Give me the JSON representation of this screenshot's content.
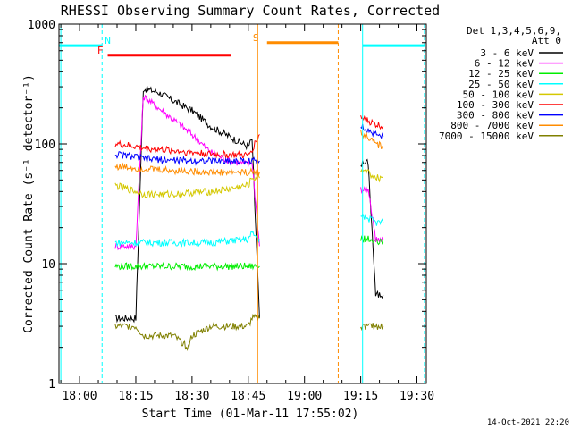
{
  "chart_data": {
    "type": "line",
    "title": "RHESSI Observing Summary Count Rates, Corrected",
    "xlabel": "Start Time (01-Mar-11 17:55:02)",
    "ylabel": "Corrected Count Rate (s⁻¹ detector⁻¹)",
    "yscale": "log",
    "xlim_minutes": [
      -0.5,
      97.5
    ],
    "ylim": [
      1,
      1000
    ],
    "x_ticks": [
      {
        "min": 5,
        "label": "18:00"
      },
      {
        "min": 20,
        "label": "18:15"
      },
      {
        "min": 35,
        "label": "18:30"
      },
      {
        "min": 50,
        "label": "18:45"
      },
      {
        "min": 65,
        "label": "19:00"
      },
      {
        "min": 80,
        "label": "19:15"
      },
      {
        "min": 95,
        "label": "19:30"
      }
    ],
    "y_ticks": [
      {
        "value": 1,
        "label": "1"
      },
      {
        "value": 10,
        "label": "10"
      },
      {
        "value": 100,
        "label": "100"
      },
      {
        "value": 1000,
        "label": "1000"
      }
    ],
    "legend_header": [
      "Det 1,3,4,5,6,9,",
      "Att 0"
    ],
    "legend_position": "top-right",
    "footer_date": "14-Oct-2021 22:20",
    "series": [
      {
        "name": "3 - 6 keV",
        "color": "#000000",
        "x": [
          14.5,
          20,
          22,
          26,
          30,
          35,
          40,
          45,
          50,
          51,
          53
        ],
        "y": [
          3.5,
          3.5,
          290,
          270,
          230,
          190,
          140,
          115,
          95,
          110,
          3.5
        ],
        "x2": [
          80,
          82,
          84,
          86
        ],
        "y2": [
          68,
          70,
          5.5,
          5.5
        ]
      },
      {
        "name": "6 - 12 keV",
        "color": "#ff00ff",
        "x": [
          14.5,
          20,
          22,
          26,
          30,
          35,
          40,
          45,
          50,
          51,
          53
        ],
        "y": [
          14,
          14,
          250,
          200,
          160,
          120,
          85,
          72,
          68,
          72,
          14
        ],
        "x2": [
          80,
          82,
          84,
          86
        ],
        "y2": [
          42,
          42,
          16,
          16
        ]
      },
      {
        "name": "12 - 25 keV",
        "color": "#00ee00",
        "x": [
          14.5,
          20,
          22,
          30,
          40,
          50,
          51,
          53
        ],
        "y": [
          9.5,
          9.5,
          9.5,
          9.5,
          9.5,
          9.5,
          9.5,
          9.5
        ],
        "x2": [
          80,
          82,
          84,
          86
        ],
        "y2": [
          16,
          16,
          15,
          15
        ]
      },
      {
        "name": "25 - 50 keV",
        "color": "#00ffff",
        "x": [
          14.5,
          20,
          22,
          30,
          40,
          50,
          51,
          53
        ],
        "y": [
          15,
          15,
          15,
          15,
          15,
          16,
          18,
          16
        ],
        "x2": [
          80,
          82,
          84,
          86
        ],
        "y2": [
          24,
          24,
          22,
          22
        ]
      },
      {
        "name": "50 - 100 keV",
        "color": "#d4c800",
        "x": [
          14.5,
          20,
          22,
          30,
          40,
          45,
          50,
          51,
          53
        ],
        "y": [
          45,
          40,
          38,
          38,
          40,
          42,
          45,
          52,
          52
        ],
        "x2": [
          80,
          82,
          84,
          86
        ],
        "y2": [
          60,
          58,
          52,
          52
        ]
      },
      {
        "name": "100 - 300 keV",
        "color": "#ff0000",
        "x": [
          14.5,
          20,
          22,
          30,
          40,
          50,
          51,
          53
        ],
        "y": [
          100,
          95,
          92,
          88,
          82,
          80,
          90,
          120
        ],
        "x2": [
          80,
          82,
          84,
          86
        ],
        "y2": [
          165,
          155,
          145,
          140
        ]
      },
      {
        "name": "300 - 800 keV",
        "color": "#0000ff",
        "x": [
          14.5,
          20,
          22,
          30,
          40,
          50,
          51,
          53
        ],
        "y": [
          82,
          78,
          75,
          73,
          72,
          72,
          72,
          72
        ],
        "x2": [
          80,
          82,
          84,
          86
        ],
        "y2": [
          140,
          130,
          120,
          115
        ]
      },
      {
        "name": "800 - 7000 keV",
        "color": "#ff8c00",
        "x": [
          14.5,
          20,
          22,
          30,
          40,
          50,
          51,
          53
        ],
        "y": [
          65,
          63,
          62,
          60,
          58,
          58,
          58,
          58
        ],
        "x2": [
          80,
          82,
          84,
          86
        ],
        "y2": [
          125,
          115,
          100,
          95
        ]
      },
      {
        "name": "7000 - 15000 keV",
        "color": "#808000",
        "x": [
          14.5,
          20,
          22,
          30,
          34,
          35,
          40,
          50,
          51,
          53
        ],
        "y": [
          3,
          3,
          2.5,
          2.5,
          2.0,
          2.5,
          3,
          3,
          3.5,
          3.5
        ],
        "x2": [
          80,
          82,
          84,
          86
        ],
        "y2": [
          3,
          3,
          3,
          3
        ]
      }
    ],
    "marker_lines": [
      {
        "label": "N",
        "color": "#00ffff",
        "y": 660,
        "x_start": -0.5,
        "x_end": 11,
        "label_x": 12.5
      },
      {
        "label": "F",
        "color": "#ff0000",
        "y": 550,
        "x_start": 12.5,
        "x_end": 45.5,
        "label_x": 10.5
      },
      {
        "label": "S",
        "color": "#ff8c00",
        "y": 700,
        "x_start": 55,
        "x_end": 74,
        "label_x": 52
      },
      {
        "label": "",
        "color": "#00ffff",
        "y": 660,
        "x_start": 80.5,
        "x_end": 97,
        "label_x": 0
      }
    ],
    "vertical_lines": [
      {
        "x": 11,
        "color": "#00ffff",
        "style": "dashed"
      },
      {
        "x": 52.5,
        "color": "#ff8c00",
        "style": "solid"
      },
      {
        "x": 74,
        "color": "#ff8c00",
        "style": "dashed"
      },
      {
        "x": 80.5,
        "color": "#00ffff",
        "style": "solid"
      },
      {
        "x": 97,
        "color": "#00ffff",
        "style": "dashed"
      },
      {
        "x": 0,
        "color": "#00ffff",
        "style": "solid"
      }
    ]
  }
}
